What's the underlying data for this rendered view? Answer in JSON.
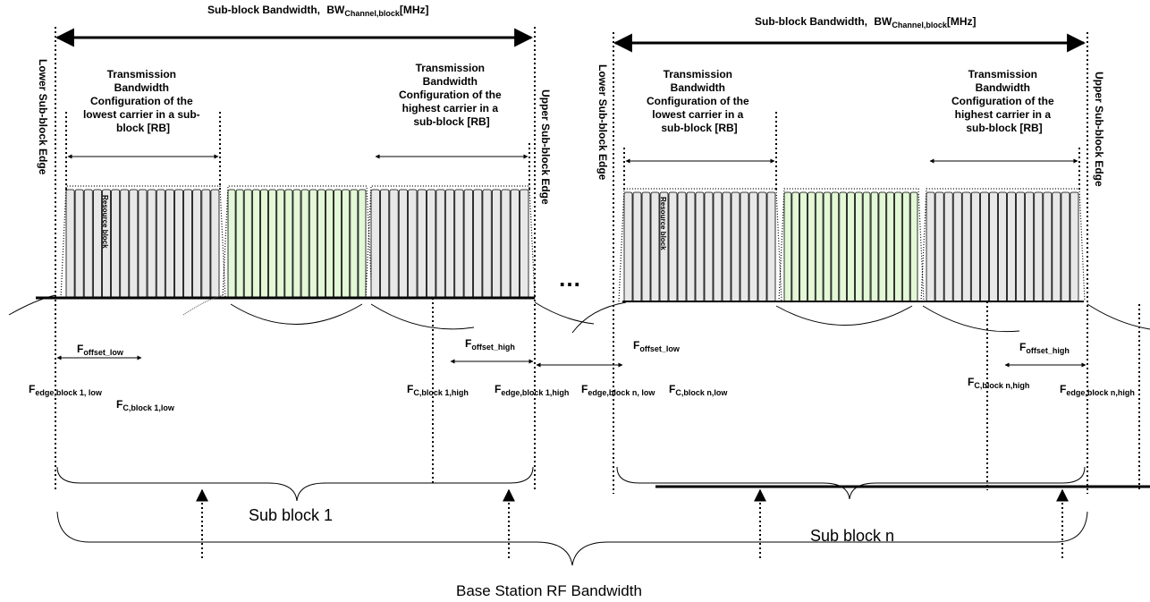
{
  "colors": {
    "rb_gray": "#e8e8e8",
    "rb_green": "#e3f8d6",
    "line": "#000000"
  },
  "sub_block_1": {
    "bw_label_main": "Sub-block Bandwidth,",
    "bw_label_bw": "BW",
    "bw_label_sub": "Channel,block",
    "bw_label_unit": "[MHz]",
    "lower_edge": "Lower Sub-block Edge",
    "upper_edge": "Upper Sub-block Edge",
    "tbc_low": [
      "Transmission",
      "Bandwidth",
      "Configuration of the",
      "lowest carrier in a sub-",
      "block  [RB]"
    ],
    "tbc_high": [
      "Transmission",
      "Bandwidth",
      "Configuration of the",
      "highest carrier in a",
      "sub-block [RB]"
    ],
    "resource_block": "Resource block",
    "f_offset_low": {
      "main": "F",
      "sub": "offset_low"
    },
    "f_offset_high": {
      "main": "F",
      "sub": "offset_high"
    },
    "f_edge_low": {
      "main": "F",
      "sub": "edge,block 1, low"
    },
    "f_c_low": {
      "main": "F",
      "sub": "C,block 1,low"
    },
    "f_c_high": {
      "main": "F",
      "sub": "C,block 1,high"
    },
    "f_edge_high": {
      "main": "F",
      "sub": "edge,block 1,high"
    },
    "label": "Sub block 1"
  },
  "sub_block_n": {
    "bw_label_main": "Sub-block Bandwidth,",
    "bw_label_bw": "BW",
    "bw_label_sub": "Channel,block",
    "bw_label_unit": "[MHz]",
    "lower_edge": "Lower Sub-block Edge",
    "upper_edge": "Upper Sub-block Edge",
    "tbc_low": [
      "Transmission",
      "Bandwidth",
      "Configuration of the",
      "lowest carrier in a",
      "sub-block  [RB]"
    ],
    "tbc_high": [
      "Transmission",
      "Bandwidth",
      "Configuration of the",
      "highest carrier in a",
      "sub-block [RB]"
    ],
    "resource_block": "Resource block",
    "f_offset_low": {
      "main": "F",
      "sub": "offset_low"
    },
    "f_offset_high": {
      "main": "F",
      "sub": "offset_high"
    },
    "f_edge_low": {
      "main": "F",
      "sub": "edge,block n, low"
    },
    "f_c_low": {
      "main": "F",
      "sub": "C,block n,low"
    },
    "f_c_high": {
      "main": "F",
      "sub": "C,block n,high"
    },
    "f_edge_high": {
      "main": "F",
      "sub": "edge,block n,high"
    },
    "label": "Sub block n"
  },
  "ellipsis": "…",
  "base_station_label": "Base Station RF Bandwidth"
}
